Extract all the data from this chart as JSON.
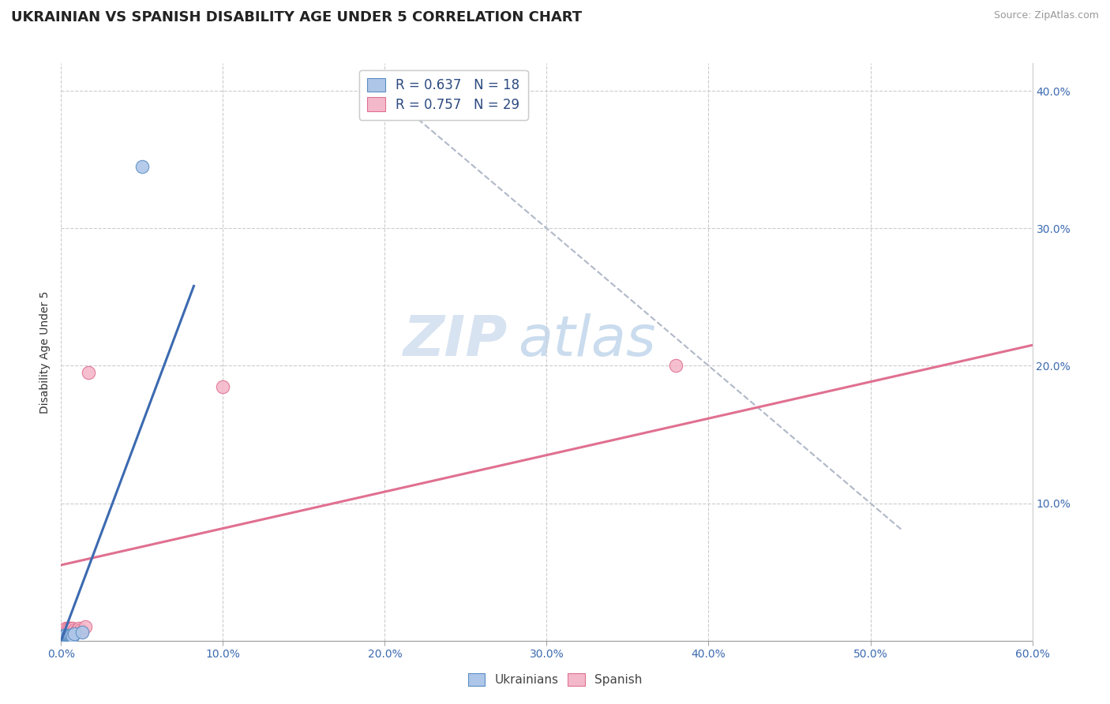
{
  "title": "UKRAINIAN VS SPANISH DISABILITY AGE UNDER 5 CORRELATION CHART",
  "source": "Source: ZipAtlas.com",
  "ylabel": "Disability Age Under 5",
  "xlabel": "",
  "xlim": [
    0.0,
    0.6
  ],
  "ylim": [
    0.0,
    0.42
  ],
  "xtick_values": [
    0.0,
    0.1,
    0.2,
    0.3,
    0.4,
    0.5,
    0.6
  ],
  "ytick_values": [
    0.1,
    0.2,
    0.3,
    0.4
  ],
  "legend_r_ukrainian": "R = 0.637",
  "legend_n_ukrainian": "N = 18",
  "legend_r_spanish": "R = 0.757",
  "legend_n_spanish": "N = 29",
  "ukrainian_color": "#aec6e8",
  "spanish_color": "#f4b8cb",
  "ukrainian_edge_color": "#5b8ec4",
  "spanish_edge_color": "#e07090",
  "ukrainian_line_color": "#3c6ab0",
  "spanish_line_color": "#e07090",
  "trendline_dashed_color": "#b0b8c8",
  "watermark_zip": "ZIP",
  "watermark_atlas": "atlas",
  "title_fontsize": 13,
  "axis_label_fontsize": 10,
  "tick_fontsize": 10,
  "ukrainians_x": [
    0.001,
    0.001,
    0.002,
    0.002,
    0.002,
    0.003,
    0.003,
    0.003,
    0.004,
    0.004,
    0.005,
    0.005,
    0.006,
    0.006,
    0.007,
    0.008,
    0.013,
    0.05
  ],
  "ukrainians_y": [
    0.002,
    0.003,
    0.002,
    0.003,
    0.004,
    0.002,
    0.003,
    0.004,
    0.003,
    0.004,
    0.003,
    0.004,
    0.003,
    0.004,
    0.003,
    0.005,
    0.006,
    0.345
  ],
  "spanish_x": [
    0.001,
    0.001,
    0.002,
    0.002,
    0.002,
    0.003,
    0.003,
    0.003,
    0.003,
    0.004,
    0.004,
    0.004,
    0.005,
    0.005,
    0.005,
    0.006,
    0.006,
    0.007,
    0.007,
    0.008,
    0.009,
    0.01,
    0.011,
    0.012,
    0.013,
    0.015,
    0.017,
    0.1,
    0.38
  ],
  "spanish_y": [
    0.005,
    0.007,
    0.005,
    0.006,
    0.008,
    0.006,
    0.007,
    0.008,
    0.009,
    0.006,
    0.007,
    0.009,
    0.005,
    0.007,
    0.009,
    0.007,
    0.009,
    0.007,
    0.009,
    0.008,
    0.007,
    0.008,
    0.009,
    0.008,
    0.007,
    0.01,
    0.195,
    0.185,
    0.2
  ],
  "ukrainian_line_x": [
    0.0,
    0.082
  ],
  "ukrainian_line_y": [
    0.0,
    0.258
  ],
  "spanish_line_x": [
    0.0,
    0.6
  ],
  "spanish_line_y": [
    0.055,
    0.215
  ],
  "dashed_line_x": [
    0.2,
    0.52
  ],
  "dashed_line_y": [
    0.4,
    0.08
  ]
}
